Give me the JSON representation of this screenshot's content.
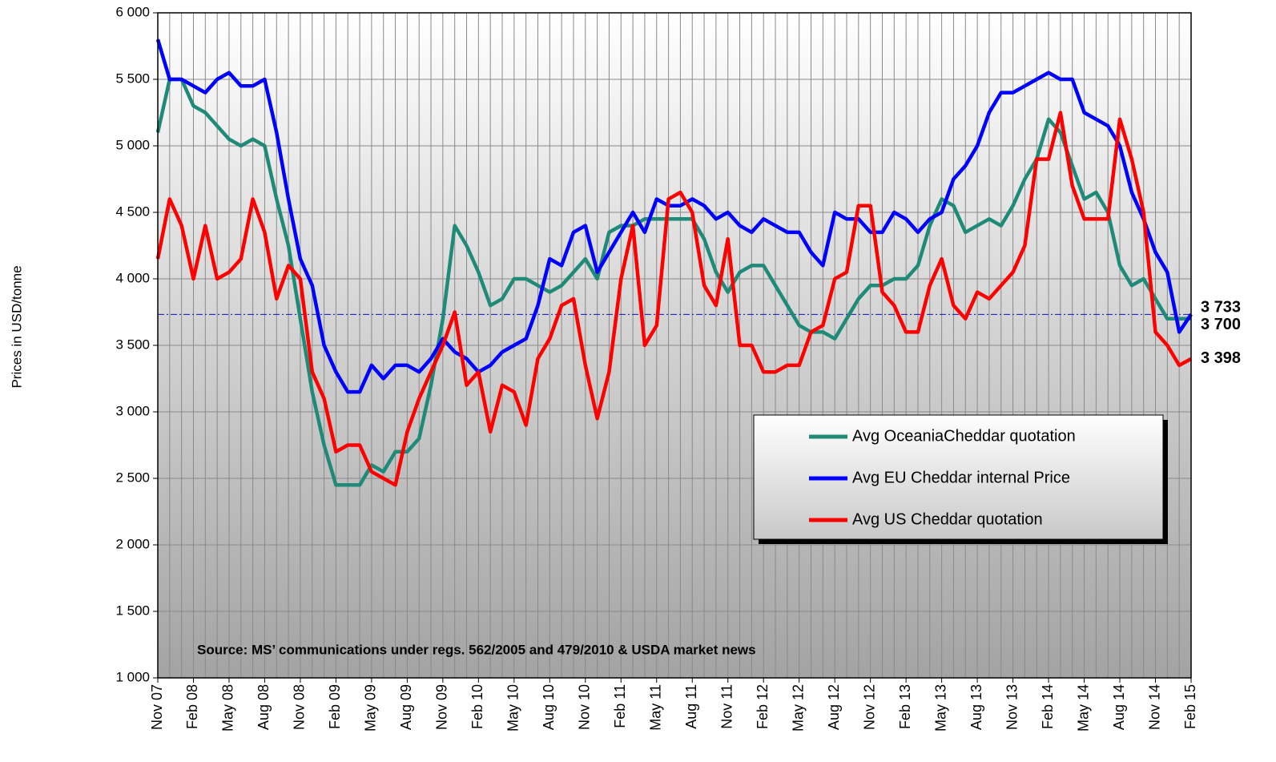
{
  "chart_data": {
    "type": "line",
    "y_label": "Prices in USD/tonne",
    "annotation": "Source: MS’ communications  under regs. 562/2005 and 479/2010 & USDA market news",
    "categories": [
      "Nov 07",
      null,
      null,
      "Feb 08",
      null,
      null,
      "May 08",
      null,
      null,
      "Aug 08",
      null,
      null,
      "Nov 08",
      null,
      null,
      "Feb 09",
      null,
      null,
      "May 09",
      null,
      null,
      "Aug 09",
      null,
      null,
      "Nov 09",
      null,
      null,
      "Feb 10",
      null,
      null,
      "May 10",
      null,
      null,
      "Aug 10",
      null,
      null,
      "Nov 10",
      null,
      null,
      "Feb 11",
      null,
      null,
      "May 11",
      null,
      null,
      "Aug 11",
      null,
      null,
      "Nov 11",
      null,
      null,
      "Feb 12",
      null,
      null,
      "May 12",
      null,
      null,
      "Aug 12",
      null,
      null,
      "Nov 12",
      null,
      null,
      "Feb 13",
      null,
      null,
      "May 13",
      null,
      null,
      "Aug 13",
      null,
      null,
      "Nov 13",
      null,
      null,
      "Feb 14",
      null,
      null,
      "May 14",
      null,
      null,
      "Aug 14",
      null,
      null,
      "Nov 14",
      null,
      null,
      "Feb 15"
    ],
    "ylim": [
      1000,
      6000
    ],
    "yticks": [
      {
        "value": 1000,
        "label": "1 000"
      },
      {
        "value": 1500,
        "label": "1 500"
      },
      {
        "value": 2000,
        "label": "2 000"
      },
      {
        "value": 2500,
        "label": "2 500"
      },
      {
        "value": 3000,
        "label": "3 000"
      },
      {
        "value": 3500,
        "label": "3 500"
      },
      {
        "value": 4000,
        "label": "4 000"
      },
      {
        "value": 4500,
        "label": "4 500"
      },
      {
        "value": 5000,
        "label": "5 000"
      },
      {
        "value": 5500,
        "label": "5 500"
      },
      {
        "value": 6000,
        "label": "6 000"
      }
    ],
    "grid": true,
    "series": [
      {
        "name": "Avg OceaniaCheddar quotation",
        "color": "#1f8a78",
        "label_color": "#2a8a5a",
        "values": [
          5100,
          5500,
          5500,
          5300,
          5250,
          5150,
          5050,
          5000,
          5050,
          5000,
          4600,
          4250,
          3700,
          3150,
          2750,
          2450,
          2450,
          2450,
          2600,
          2550,
          2700,
          2700,
          2800,
          3200,
          3700,
          4400,
          4250,
          4050,
          3800,
          3850,
          4000,
          4000,
          3950,
          3900,
          3950,
          4050,
          4150,
          4000,
          4350,
          4400,
          4400,
          4450,
          4450,
          4450,
          4450,
          4450,
          4300,
          4050,
          3900,
          4050,
          4100,
          4100,
          3950,
          3800,
          3650,
          3600,
          3600,
          3550,
          3700,
          3850,
          3950,
          3950,
          4000,
          4000,
          4100,
          4400,
          4600,
          4550,
          4350,
          4400,
          4450,
          4400,
          4550,
          4750,
          4900,
          5200,
          5100,
          4850,
          4600,
          4650,
          4500,
          4100,
          3950,
          4000,
          3850,
          3700,
          3700,
          3700
        ],
        "value_labels": [
          null,
          null,
          null,
          null,
          null,
          null,
          null,
          null,
          null,
          null,
          null,
          null,
          null,
          null,
          null,
          null,
          null,
          null,
          null,
          null,
          null,
          null,
          null,
          null,
          null,
          null,
          null,
          null,
          null,
          null,
          null,
          null,
          null,
          null,
          null,
          null,
          null,
          null,
          null,
          null,
          null,
          null,
          null,
          null,
          null,
          null,
          null,
          null,
          null,
          null,
          null,
          null,
          null,
          null,
          null,
          null,
          null,
          null,
          null,
          null,
          null,
          null,
          null,
          null,
          null,
          null,
          null,
          null,
          null,
          null,
          null,
          null,
          null,
          null,
          null,
          null,
          null,
          null,
          null,
          null,
          null,
          null,
          null,
          null,
          null,
          null,
          null,
          "3 700"
        ]
      },
      {
        "name": "Avg EU Cheddar internal Price",
        "color": "#0000ff",
        "label_color": "#5b8fd0",
        "values": [
          5800,
          5500,
          5500,
          5450,
          5400,
          5500,
          5550,
          5450,
          5450,
          5500,
          5100,
          4600,
          4150,
          3950,
          3500,
          3300,
          3150,
          3150,
          3350,
          3250,
          3350,
          3350,
          3300,
          3400,
          3550,
          3450,
          3400,
          3300,
          3350,
          3450,
          3500,
          3550,
          3800,
          4150,
          4100,
          4350,
          4400,
          4050,
          4200,
          4350,
          4500,
          4350,
          4600,
          4550,
          4550,
          4600,
          4550,
          4450,
          4500,
          4400,
          4350,
          4450,
          4400,
          4350,
          4350,
          4200,
          4100,
          4500,
          4450,
          4450,
          4350,
          4350,
          4500,
          4450,
          4350,
          4450,
          4500,
          4750,
          4850,
          5000,
          5250,
          5400,
          5400,
          5450,
          5500,
          5550,
          5500,
          5500,
          5250,
          5200,
          5150,
          5000,
          4650,
          4450,
          4200,
          4050,
          3600,
          3733
        ],
        "value_labels": [
          null,
          null,
          null,
          null,
          null,
          null,
          null,
          null,
          null,
          null,
          null,
          null,
          null,
          null,
          null,
          null,
          null,
          null,
          null,
          null,
          null,
          null,
          null,
          null,
          null,
          null,
          null,
          null,
          null,
          null,
          null,
          null,
          null,
          null,
          null,
          null,
          null,
          null,
          null,
          null,
          null,
          null,
          null,
          null,
          null,
          null,
          null,
          null,
          null,
          null,
          null,
          null,
          null,
          null,
          null,
          null,
          null,
          null,
          null,
          null,
          null,
          null,
          null,
          null,
          null,
          null,
          null,
          null,
          null,
          null,
          null,
          null,
          null,
          null,
          null,
          null,
          null,
          null,
          null,
          null,
          null,
          null,
          null,
          null,
          null,
          null,
          null,
          "3 733"
        ]
      },
      {
        "name": "Avg US Cheddar quotation",
        "color": "#ff0000",
        "label_color": "#ff0000",
        "values": [
          4150,
          4600,
          4400,
          4000,
          4400,
          4000,
          4050,
          4150,
          4600,
          4350,
          3850,
          4100,
          4000,
          3300,
          3100,
          2700,
          2750,
          2750,
          2550,
          2500,
          2450,
          2850,
          3100,
          3300,
          3500,
          3750,
          3200,
          3300,
          2850,
          3200,
          3150,
          2900,
          3400,
          3550,
          3800,
          3850,
          3350,
          2950,
          3300,
          4000,
          4400,
          3500,
          3650,
          4600,
          4650,
          4500,
          3950,
          3800,
          4300,
          3500,
          3500,
          3300,
          3300,
          3350,
          3350,
          3600,
          3650,
          4000,
          4050,
          4550,
          4550,
          3900,
          3800,
          3600,
          3600,
          3950,
          4150,
          3800,
          3700,
          3900,
          3850,
          3950,
          4050,
          4250,
          4900,
          4900,
          5250,
          4700,
          4450,
          4450,
          4450,
          5200,
          4900,
          4500,
          3600,
          3500,
          3350,
          3398
        ],
        "value_labels": [
          null,
          null,
          null,
          null,
          null,
          null,
          null,
          null,
          null,
          null,
          null,
          null,
          null,
          null,
          null,
          null,
          null,
          null,
          null,
          null,
          null,
          null,
          null,
          null,
          null,
          null,
          null,
          null,
          null,
          null,
          null,
          null,
          null,
          null,
          null,
          null,
          null,
          null,
          null,
          null,
          null,
          null,
          null,
          null,
          null,
          null,
          null,
          null,
          null,
          null,
          null,
          null,
          null,
          null,
          null,
          null,
          null,
          null,
          null,
          null,
          null,
          null,
          null,
          null,
          null,
          null,
          null,
          null,
          null,
          null,
          null,
          null,
          null,
          null,
          null,
          null,
          null,
          null,
          null,
          null,
          null,
          null,
          null,
          null,
          null,
          null,
          null,
          "3 398"
        ]
      }
    ]
  }
}
